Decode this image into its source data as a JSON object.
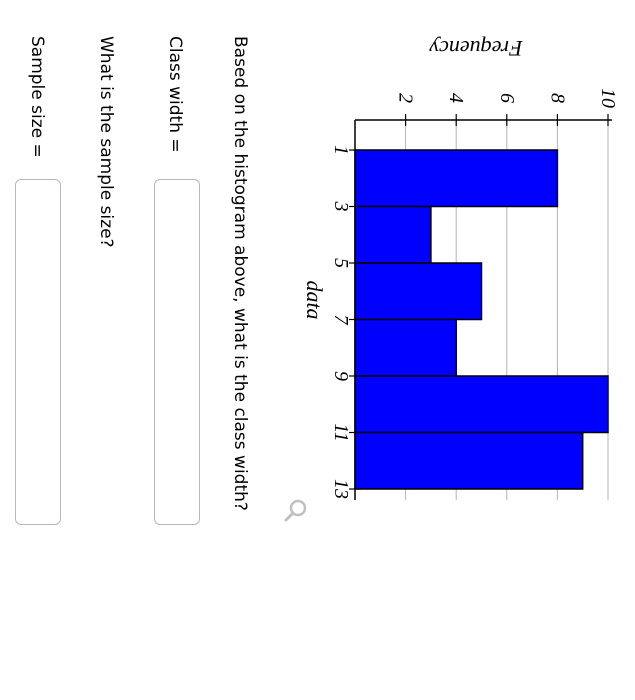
{
  "chart_data": {
    "type": "bar",
    "title": "",
    "xlabel": "data",
    "ylabel": "Frequency",
    "x_ticks": [
      1,
      3,
      5,
      7,
      9,
      11,
      13
    ],
    "y_ticks": [
      2,
      4,
      6,
      8,
      10
    ],
    "ylim": [
      0,
      10
    ],
    "xlim": [
      1,
      13
    ],
    "bins": [
      {
        "start": 1,
        "end": 3,
        "value": 8
      },
      {
        "start": 3,
        "end": 5,
        "value": 3
      },
      {
        "start": 5,
        "end": 7,
        "value": 5
      },
      {
        "start": 7,
        "end": 9,
        "value": 4
      },
      {
        "start": 9,
        "end": 11,
        "value": 10
      },
      {
        "start": 11,
        "end": 13,
        "value": 9
      }
    ],
    "bar_color": "#0000ff",
    "grid": true
  },
  "zoom_icon": "magnifier-icon",
  "questions": {
    "q1": "Based on the histogram above, what is the class width?",
    "q1_label": "Class width =",
    "q1_value": "",
    "q2": "What is the sample size?",
    "q2_label": "Sample size =",
    "q2_value": ""
  }
}
